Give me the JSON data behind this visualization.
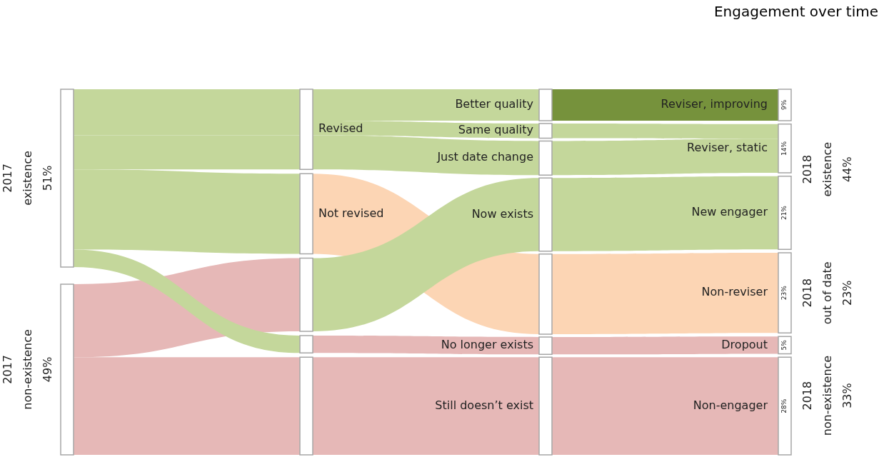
{
  "chart_data": {
    "type": "other",
    "title": "Engagement over time",
    "categories": [
      "Reviser, improving",
      "Reviser, static",
      "New engager",
      "Non-reviser",
      "Dropout",
      "Non-engager"
    ],
    "values": [
      9,
      14,
      21,
      23,
      5,
      28
    ],
    "value_labels": [
      "9%",
      "14%",
      "21%",
      "23%",
      "5%",
      "28%"
    ],
    "colors": [
      "#76923c",
      "#c4d79b",
      "#c4d79b",
      "#fcd5b4",
      "#e6b8b7",
      "#e6b8b7"
    ],
    "annotations": [
      "2017\nexistence\n51%",
      "2017\nnon-existence\n49%",
      "Revised",
      "Not revised",
      "Better quality",
      "Same quality",
      "Just date change",
      "Now exists",
      "No longer exists",
      "Still doesn’t exist",
      "2018\nexistence\n44%",
      "2018\nout of date\n23%",
      "2018\nnon-existence\n33%"
    ]
  }
}
